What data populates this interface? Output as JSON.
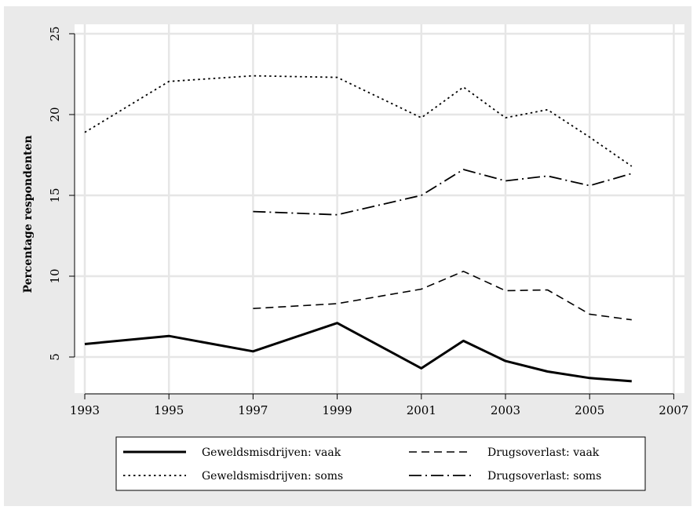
{
  "chart_data": {
    "type": "line",
    "ylabel": "Percentage respondenten",
    "xlabel": "",
    "xlim": [
      1993,
      2007
    ],
    "ylim": [
      3,
      25
    ],
    "xticks": [
      1993,
      1995,
      1997,
      1999,
      2001,
      2003,
      2005,
      2007
    ],
    "yticks": [
      5,
      10,
      15,
      20,
      25
    ],
    "grid": true,
    "legend_position": "bottom",
    "series": [
      {
        "name": "Geweldsmisdrijven: vaak",
        "style": "solid",
        "x": [
          1993,
          1995,
          1997,
          1999,
          2001,
          2002,
          2003,
          2004,
          2005,
          2006
        ],
        "y": [
          5.8,
          6.3,
          5.35,
          7.1,
          4.3,
          6.0,
          4.75,
          4.1,
          3.7,
          3.5
        ]
      },
      {
        "name": "Drugsoverlast: vaak",
        "style": "dashed",
        "x": [
          1997,
          1999,
          2001,
          2002,
          2003,
          2004,
          2005,
          2006
        ],
        "y": [
          8.0,
          8.3,
          9.2,
          10.3,
          9.1,
          9.15,
          7.65,
          7.3
        ]
      },
      {
        "name": "Geweldsmisdrijven: soms",
        "style": "dotted",
        "x": [
          1993,
          1995,
          1997,
          1999,
          2001,
          2002,
          2003,
          2004,
          2005,
          2006
        ],
        "y": [
          18.9,
          22.05,
          22.4,
          22.3,
          19.8,
          21.7,
          19.8,
          20.3,
          18.6,
          16.8
        ]
      },
      {
        "name": "Drugsoverlast: soms",
        "style": "dashdot",
        "x": [
          1997,
          1999,
          2001,
          2002,
          2003,
          2004,
          2005,
          2006
        ],
        "y": [
          14.0,
          13.8,
          15.0,
          16.6,
          15.9,
          16.2,
          15.6,
          16.35
        ]
      }
    ]
  }
}
